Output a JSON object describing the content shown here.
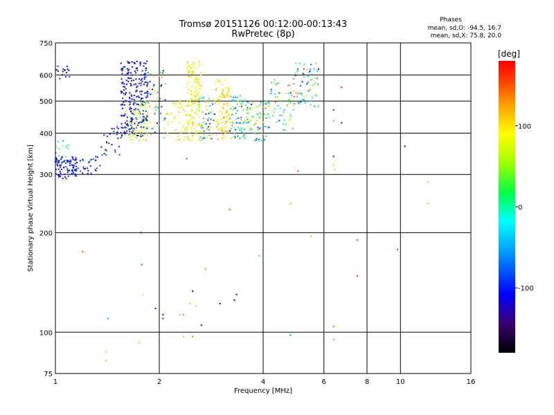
{
  "chart_data": {
    "type": "scatter",
    "title": "Tromsø 20151126 00:12:00-00:13:43",
    "subtitle": "RwPretec (8p)",
    "xlabel": "Frequency [MHz]",
    "ylabel": "Stationary phase Virtual Height [km]",
    "x_scale": "log",
    "y_scale": "log",
    "xlim": [
      1,
      16
    ],
    "ylim": [
      75,
      750
    ],
    "x_ticks": [
      1,
      2,
      4,
      6,
      8,
      10,
      16
    ],
    "y_ticks": [
      75,
      100,
      200,
      300,
      400,
      500,
      600,
      750
    ],
    "x_grid": [
      2,
      4,
      6,
      8,
      10
    ],
    "y_grid": [
      100,
      200,
      300,
      400,
      500,
      600
    ],
    "legend": {
      "title": "Phases",
      "lines": [
        "mean, sd,O: -94.5, 16.7",
        "mean, sd,X:  75.8, 20.0"
      ]
    },
    "colorbar": {
      "label": "[deg]",
      "ticks": [
        100,
        0,
        -100
      ],
      "range": [
        -180,
        180
      ],
      "colors": [
        "#000000",
        "#3a0070",
        "#0000ff",
        "#00a0ff",
        "#00ffff",
        "#00ff40",
        "#a0ff00",
        "#ffff00",
        "#ffa000",
        "#ff4000",
        "#ff0000"
      ]
    },
    "clusters": [
      {
        "x": [
          1.0,
          1.15
        ],
        "y": [
          290,
          340
        ],
        "phase": [
          -120,
          -85
        ],
        "n": 90
      },
      {
        "x": [
          1.0,
          1.1
        ],
        "y": [
          330,
          380
        ],
        "phase": [
          -60,
          120
        ],
        "n": 14
      },
      {
        "x": [
          1.0,
          1.1
        ],
        "y": [
          570,
          640
        ],
        "phase": [
          -110,
          -90
        ],
        "n": 16
      },
      {
        "x": [
          1.15,
          1.35
        ],
        "y": [
          300,
          340
        ],
        "phase": [
          -115,
          -85
        ],
        "n": 28
      },
      {
        "x": [
          1.35,
          1.55
        ],
        "y": [
          340,
          420
        ],
        "phase": [
          -115,
          -80
        ],
        "n": 30
      },
      {
        "x": [
          1.55,
          1.85
        ],
        "y": [
          390,
          660
        ],
        "phase": [
          -130,
          -85
        ],
        "n": 240
      },
      {
        "x": [
          1.6,
          1.85
        ],
        "y": [
          380,
          500
        ],
        "phase": [
          40,
          110
        ],
        "n": 70
      },
      {
        "x": [
          1.8,
          2.1
        ],
        "y": [
          380,
          620
        ],
        "phase": [
          -120,
          130
        ],
        "n": 60
      },
      {
        "x": [
          2.1,
          2.45
        ],
        "y": [
          380,
          500
        ],
        "phase": [
          60,
          120
        ],
        "n": 45
      },
      {
        "x": [
          2.4,
          2.65
        ],
        "y": [
          380,
          660
        ],
        "phase": [
          70,
          115
        ],
        "n": 150
      },
      {
        "x": [
          2.6,
          2.9
        ],
        "y": [
          380,
          520
        ],
        "phase": [
          -110,
          140
        ],
        "n": 60
      },
      {
        "x": [
          2.9,
          3.2
        ],
        "y": [
          380,
          580
        ],
        "phase": [
          80,
          130
        ],
        "n": 95
      },
      {
        "x": [
          3.2,
          3.6
        ],
        "y": [
          380,
          520
        ],
        "phase": [
          -100,
          130
        ],
        "n": 80
      },
      {
        "x": [
          3.6,
          4.2
        ],
        "y": [
          380,
          500
        ],
        "phase": [
          -100,
          120
        ],
        "n": 75
      },
      {
        "x": [
          4.2,
          4.9
        ],
        "y": [
          400,
          580
        ],
        "phase": [
          -100,
          150
        ],
        "n": 55
      },
      {
        "x": [
          4.9,
          5.8
        ],
        "y": [
          480,
          660
        ],
        "phase": [
          -110,
          160
        ],
        "n": 70
      }
    ],
    "points": [
      {
        "x": 1.2,
        "y": 175,
        "phase": 150
      },
      {
        "x": 1.4,
        "y": 87,
        "phase": 110
      },
      {
        "x": 1.4,
        "y": 82,
        "phase": 120
      },
      {
        "x": 1.42,
        "y": 110,
        "phase": -50
      },
      {
        "x": 1.75,
        "y": 93,
        "phase": 40
      },
      {
        "x": 1.77,
        "y": 200,
        "phase": -130
      },
      {
        "x": 1.78,
        "y": 160,
        "phase": -70
      },
      {
        "x": 1.8,
        "y": 130,
        "phase": 100
      },
      {
        "x": 1.95,
        "y": 118,
        "phase": -130
      },
      {
        "x": 2.05,
        "y": 113,
        "phase": -150
      },
      {
        "x": 2.05,
        "y": 110,
        "phase": -100
      },
      {
        "x": 2.3,
        "y": 113,
        "phase": 120
      },
      {
        "x": 2.35,
        "y": 113,
        "phase": 140
      },
      {
        "x": 2.35,
        "y": 97,
        "phase": 120
      },
      {
        "x": 2.45,
        "y": 122,
        "phase": 110
      },
      {
        "x": 2.5,
        "y": 133,
        "phase": -160
      },
      {
        "x": 2.5,
        "y": 97,
        "phase": 140
      },
      {
        "x": 2.55,
        "y": 120,
        "phase": 110
      },
      {
        "x": 2.65,
        "y": 105,
        "phase": -130
      },
      {
        "x": 2.72,
        "y": 155,
        "phase": 140
      },
      {
        "x": 3.0,
        "y": 122,
        "phase": -170
      },
      {
        "x": 3.3,
        "y": 125,
        "phase": -160
      },
      {
        "x": 3.35,
        "y": 130,
        "phase": -120
      },
      {
        "x": 3.9,
        "y": 170,
        "phase": -30
      },
      {
        "x": 3.2,
        "y": 235,
        "phase": 150
      },
      {
        "x": 2.4,
        "y": 335,
        "phase": 160
      },
      {
        "x": 4.8,
        "y": 98,
        "phase": -60
      },
      {
        "x": 4.8,
        "y": 245,
        "phase": 130
      },
      {
        "x": 5.05,
        "y": 307,
        "phase": 170
      },
      {
        "x": 5.5,
        "y": 195,
        "phase": 120
      },
      {
        "x": 6.4,
        "y": 95,
        "phase": -30
      },
      {
        "x": 6.4,
        "y": 104,
        "phase": 150
      },
      {
        "x": 6.4,
        "y": 320,
        "phase": 120
      },
      {
        "x": 6.45,
        "y": 310,
        "phase": 110
      },
      {
        "x": 6.4,
        "y": 340,
        "phase": -130
      },
      {
        "x": 6.4,
        "y": 435,
        "phase": -30
      },
      {
        "x": 6.4,
        "y": 470,
        "phase": -90
      },
      {
        "x": 6.75,
        "y": 430,
        "phase": -110
      },
      {
        "x": 6.75,
        "y": 550,
        "phase": 170
      },
      {
        "x": 7.5,
        "y": 190,
        "phase": 150
      },
      {
        "x": 7.5,
        "y": 148,
        "phase": 160
      },
      {
        "x": 9.8,
        "y": 178,
        "phase": 170
      },
      {
        "x": 10.3,
        "y": 365,
        "phase": -170
      },
      {
        "x": 12.0,
        "y": 285,
        "phase": 40
      },
      {
        "x": 12.0,
        "y": 245,
        "phase": 130
      }
    ]
  }
}
